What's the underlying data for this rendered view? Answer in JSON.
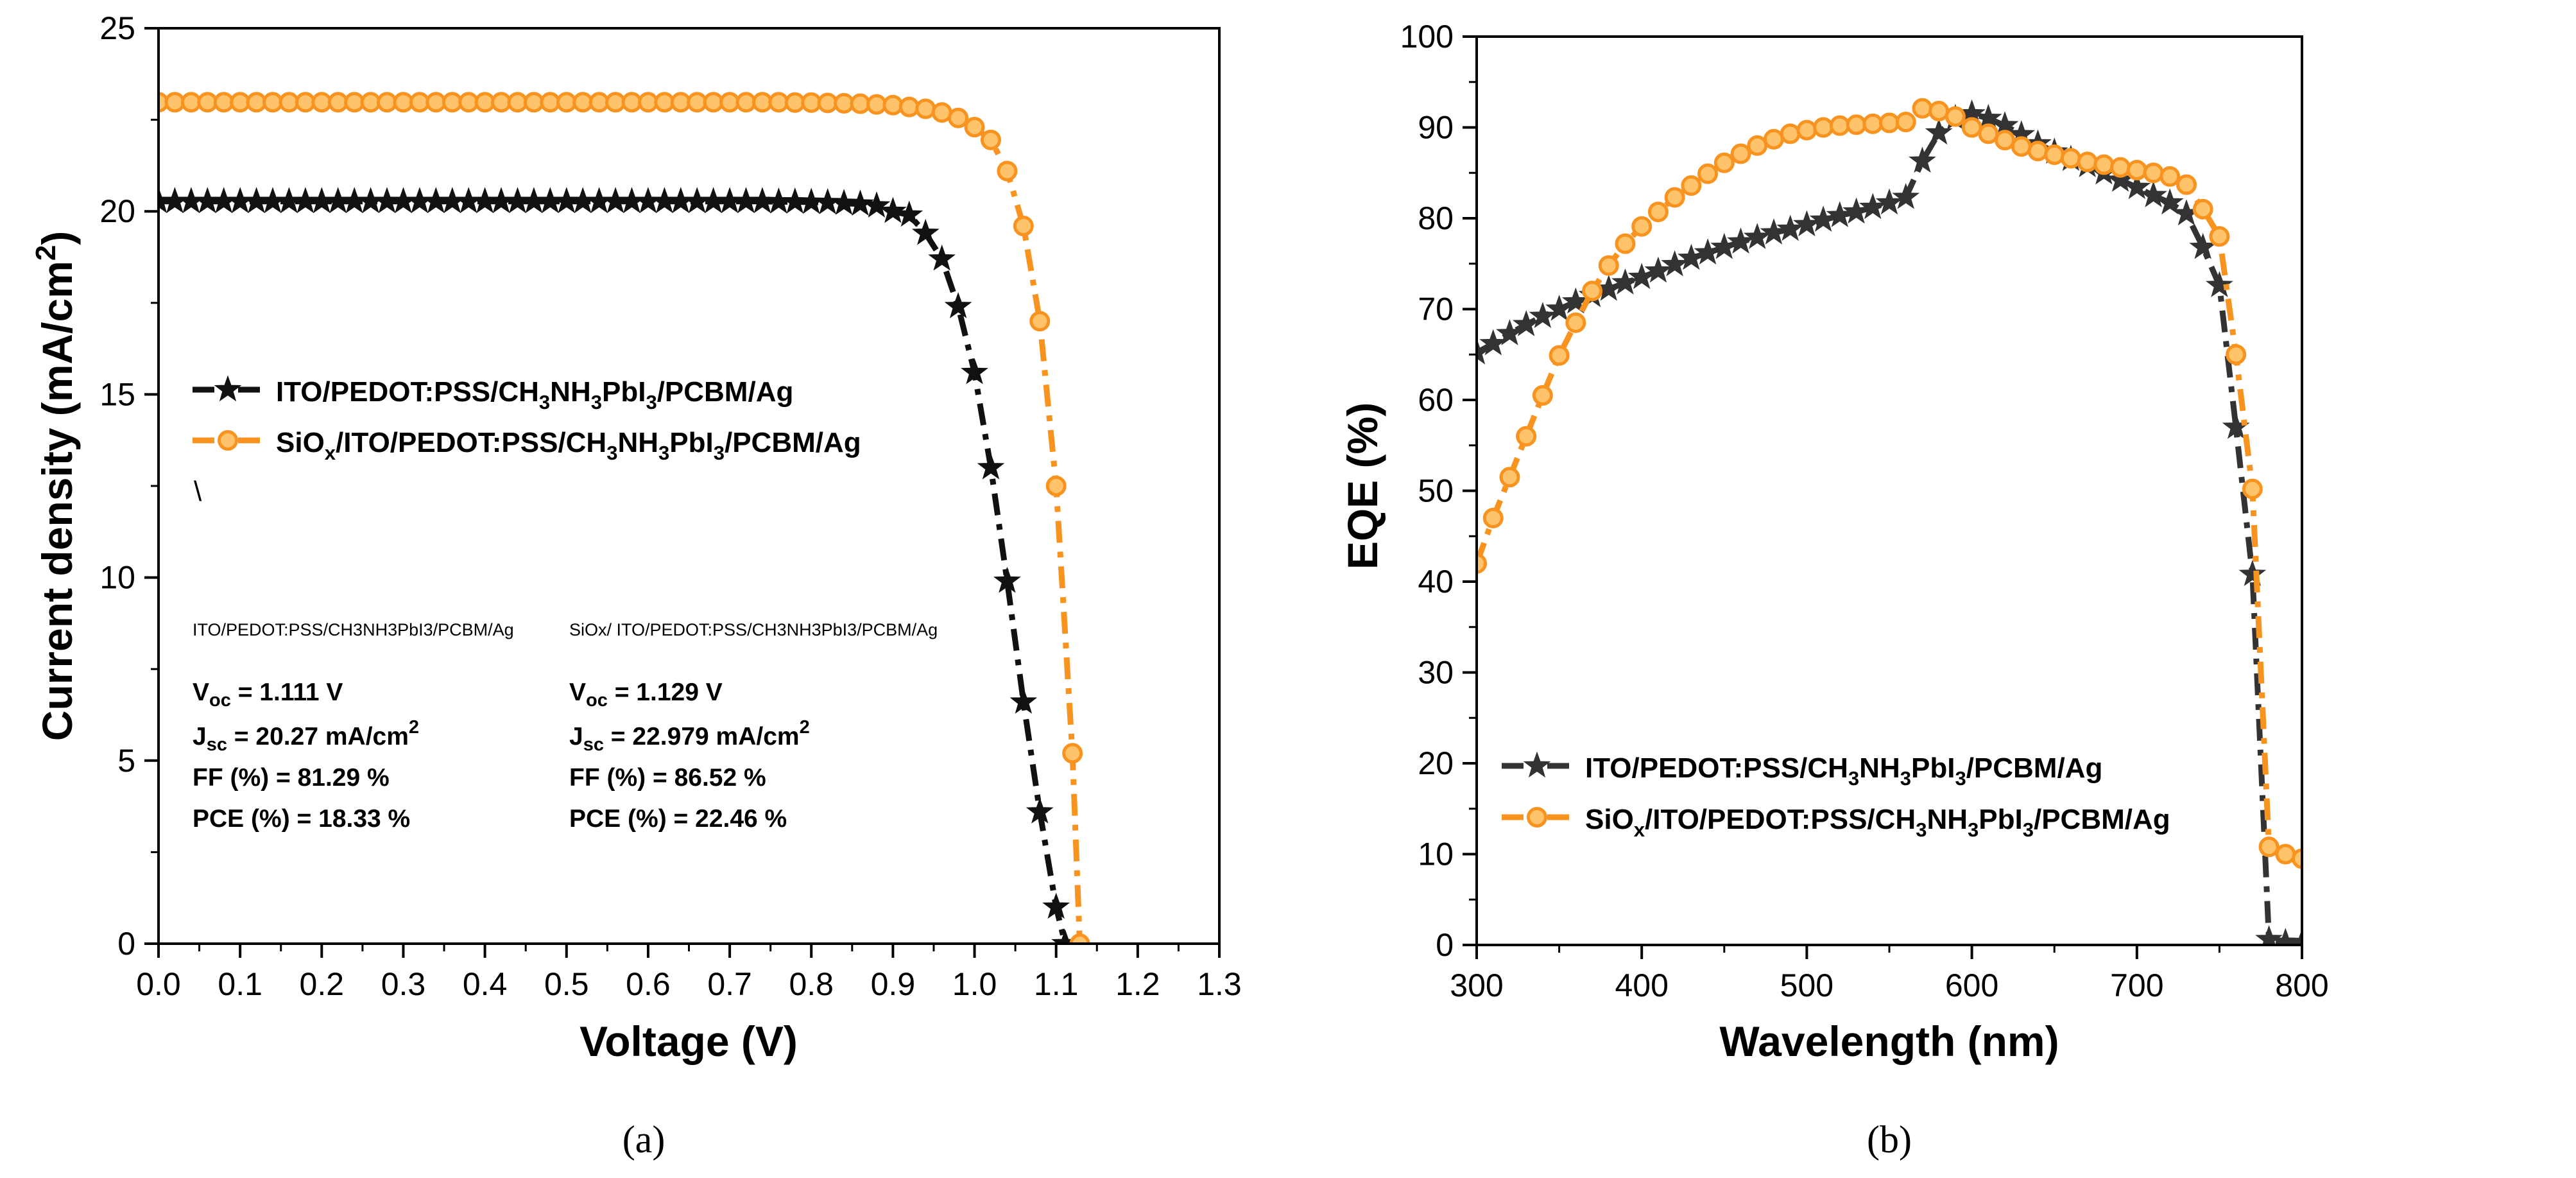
{
  "chart_data": [
    {
      "type": "line",
      "panel_label": "(a)",
      "title": "",
      "xlabel": "Voltage (V)",
      "ylabel": "Current density (mA/cm",
      "ylabel_sup": "2",
      "ylabel_tail": ")",
      "xlim": [
        0.0,
        1.3
      ],
      "ylim": [
        0,
        25
      ],
      "x_ticks": [
        0.0,
        0.1,
        0.2,
        0.3,
        0.4,
        0.5,
        0.6,
        0.7,
        0.8,
        0.9,
        1.0,
        1.1,
        1.2,
        1.3
      ],
      "y_ticks": [
        0,
        5,
        10,
        15,
        20,
        25
      ],
      "x_tick_labels": [
        "0.0",
        "0.1",
        "0.2",
        "0.3",
        "0.4",
        "0.5",
        "0.6",
        "0.7",
        "0.8",
        "0.9",
        "1.0",
        "1.1",
        "1.2",
        "1.3"
      ],
      "y_tick_labels": [
        "0",
        "5",
        "10",
        "15",
        "20",
        "25"
      ],
      "legend": {
        "placement": "middle-left",
        "entries": [
          {
            "pre": "ITO/PEDOT:PSS/CH",
            "sub1": "3",
            "mid": "NH",
            "sub2": "3",
            "post": "PbI",
            "sub3": "3",
            "tail": "/PCBM/Ag"
          },
          {
            "pre": "SiO",
            "sub0": "x",
            "pre2": "/ITO/PEDOT:PSS/CH",
            "sub1": "3",
            "mid": "NH",
            "sub2": "3",
            "post": "PbI",
            "sub3": "3",
            "tail": "/PCBM/Ag"
          }
        ],
        "stray_mark": "\\"
      },
      "annotation": {
        "col1_title": "ITO/PEDOT:PSS/CH3NH3PbI3/PCBM/Ag",
        "col2_title": "SiOx/ ITO/PEDOT:PSS/CH3NH3PbI3/PCBM/Ag",
        "voc_label": "V",
        "voc_sub": "oc",
        "jsc_label": "J",
        "jsc_sub": "sc",
        "col1_voc": " = 1.111 V",
        "col1_jsc": " =   20.27 mA/cm",
        "col1_ff": "FF (%) = 81.29 %",
        "col1_pce": "PCE (%) = 18.33 %",
        "col2_voc": " = 1.129 V",
        "col2_jsc": " =   22.979 mA/cm",
        "col2_ff": "FF (%) = 86.52 %",
        "col2_pce": "PCE (%) = 22.46 %",
        "sup2": "2"
      },
      "series": [
        {
          "name": "ITO/PEDOT:PSS/CH3NH3PbI3/PCBM/Ag",
          "color": "#111111",
          "marker": "star",
          "x": [
            0.0,
            0.02,
            0.04,
            0.06,
            0.08,
            0.1,
            0.12,
            0.14,
            0.16,
            0.18,
            0.2,
            0.22,
            0.24,
            0.26,
            0.28,
            0.3,
            0.32,
            0.34,
            0.36,
            0.38,
            0.4,
            0.42,
            0.44,
            0.46,
            0.48,
            0.5,
            0.52,
            0.54,
            0.56,
            0.58,
            0.6,
            0.62,
            0.64,
            0.66,
            0.68,
            0.7,
            0.72,
            0.74,
            0.76,
            0.78,
            0.8,
            0.82,
            0.84,
            0.86,
            0.88,
            0.9,
            0.92,
            0.94,
            0.96,
            0.98,
            1.0,
            1.02,
            1.04,
            1.06,
            1.08,
            1.1,
            1.111
          ],
          "y": [
            20.27,
            20.27,
            20.27,
            20.27,
            20.27,
            20.27,
            20.27,
            20.27,
            20.27,
            20.27,
            20.27,
            20.27,
            20.27,
            20.27,
            20.27,
            20.27,
            20.27,
            20.27,
            20.27,
            20.27,
            20.27,
            20.27,
            20.27,
            20.27,
            20.27,
            20.27,
            20.27,
            20.27,
            20.27,
            20.27,
            20.27,
            20.27,
            20.27,
            20.27,
            20.27,
            20.27,
            20.27,
            20.27,
            20.26,
            20.26,
            20.25,
            20.24,
            20.22,
            20.2,
            20.15,
            20.0,
            19.9,
            19.4,
            18.7,
            17.4,
            15.6,
            13.0,
            9.9,
            6.6,
            3.6,
            1.0,
            0.0
          ]
        },
        {
          "name": "SiOx/ITO/PEDOT:PSS/CH3NH3PbI3/PCBM/Ag",
          "color": "#F7931E",
          "marker": "circle",
          "x": [
            0.0,
            0.02,
            0.04,
            0.06,
            0.08,
            0.1,
            0.12,
            0.14,
            0.16,
            0.18,
            0.2,
            0.22,
            0.24,
            0.26,
            0.28,
            0.3,
            0.32,
            0.34,
            0.36,
            0.38,
            0.4,
            0.42,
            0.44,
            0.46,
            0.48,
            0.5,
            0.52,
            0.54,
            0.56,
            0.58,
            0.6,
            0.62,
            0.64,
            0.66,
            0.68,
            0.7,
            0.72,
            0.74,
            0.76,
            0.78,
            0.8,
            0.82,
            0.84,
            0.86,
            0.88,
            0.9,
            0.92,
            0.94,
            0.96,
            0.98,
            1.0,
            1.02,
            1.04,
            1.06,
            1.08,
            1.1,
            1.12,
            1.129
          ],
          "y": [
            22.979,
            22.979,
            22.979,
            22.979,
            22.979,
            22.979,
            22.979,
            22.979,
            22.979,
            22.979,
            22.979,
            22.979,
            22.979,
            22.979,
            22.979,
            22.979,
            22.979,
            22.979,
            22.979,
            22.979,
            22.979,
            22.979,
            22.979,
            22.979,
            22.979,
            22.979,
            22.979,
            22.979,
            22.979,
            22.979,
            22.979,
            22.979,
            22.979,
            22.979,
            22.979,
            22.979,
            22.979,
            22.979,
            22.979,
            22.97,
            22.97,
            22.96,
            22.95,
            22.94,
            22.92,
            22.9,
            22.85,
            22.8,
            22.7,
            22.55,
            22.3,
            21.95,
            21.1,
            19.6,
            17.0,
            12.5,
            5.2,
            0.0
          ]
        }
      ]
    },
    {
      "type": "line",
      "panel_label": "(b)",
      "title": "",
      "xlabel": "Wavelength (nm)",
      "ylabel": "EQE (%)",
      "xlim": [
        300,
        800
      ],
      "ylim": [
        0,
        100
      ],
      "x_ticks": [
        300,
        400,
        500,
        600,
        700,
        800
      ],
      "y_ticks": [
        0,
        10,
        20,
        30,
        40,
        50,
        60,
        70,
        80,
        90,
        100
      ],
      "x_tick_labels": [
        "300",
        "400",
        "500",
        "600",
        "700",
        "800"
      ],
      "y_tick_labels": [
        "0",
        "10",
        "20",
        "30",
        "40",
        "50",
        "60",
        "70",
        "80",
        "90",
        "100"
      ],
      "legend": {
        "placement": "lower-left",
        "entries": [
          {
            "pre": "ITO/PEDOT:PSS/CH",
            "sub1": "3",
            "mid": "NH",
            "sub2": "3",
            "post": "PbI",
            "sub3": "3",
            "tail": "/PCBM/Ag"
          },
          {
            "pre": "SiO",
            "sub0": "x",
            "pre2": "/ITO/PEDOT:PSS/CH",
            "sub1": "3",
            "mid": "NH",
            "sub2": "3",
            "post": "PbI",
            "sub3": "3",
            "tail": "/PCBM/Ag"
          }
        ]
      },
      "series": [
        {
          "name": "ITO/PEDOT:PSS/CH3NH3PbI3/PCBM/Ag",
          "color": "#333333",
          "marker": "star",
          "x": [
            300,
            310,
            320,
            330,
            340,
            350,
            360,
            370,
            380,
            390,
            400,
            410,
            420,
            430,
            440,
            450,
            460,
            470,
            480,
            490,
            500,
            510,
            520,
            530,
            540,
            550,
            560,
            570,
            580,
            590,
            600,
            610,
            620,
            630,
            640,
            650,
            660,
            670,
            680,
            690,
            700,
            710,
            720,
            730,
            740,
            750,
            760,
            770,
            780,
            790,
            800
          ],
          "y": [
            65.2,
            66.2,
            67.3,
            68.3,
            69.2,
            70.0,
            70.8,
            71.5,
            72.2,
            72.9,
            73.5,
            74.2,
            74.9,
            75.6,
            76.2,
            76.8,
            77.4,
            77.9,
            78.4,
            78.8,
            79.3,
            79.8,
            80.3,
            80.7,
            81.2,
            81.7,
            82.3,
            86.3,
            89.4,
            91.0,
            91.5,
            91.0,
            90.2,
            89.2,
            88.2,
            87.3,
            86.5,
            85.8,
            85.0,
            84.2,
            83.4,
            82.5,
            81.7,
            80.5,
            76.8,
            72.6,
            57.0,
            40.8,
            0.6,
            0.3,
            0.2
          ]
        },
        {
          "name": "SiOx/ITO/PEDOT:PSS/CH3NH3PbI3/PCBM/Ag",
          "color": "#F7931E",
          "marker": "circle",
          "x": [
            300,
            310,
            320,
            330,
            340,
            350,
            360,
            370,
            380,
            390,
            400,
            410,
            420,
            430,
            440,
            450,
            460,
            470,
            480,
            490,
            500,
            510,
            520,
            530,
            540,
            550,
            560,
            570,
            580,
            590,
            600,
            610,
            620,
            630,
            640,
            650,
            660,
            670,
            680,
            690,
            700,
            710,
            720,
            730,
            740,
            750,
            760,
            770,
            780,
            790,
            800
          ],
          "y": [
            42.0,
            47.0,
            51.5,
            56.0,
            60.5,
            64.9,
            68.5,
            72.0,
            74.8,
            77.2,
            79.1,
            80.7,
            82.3,
            83.6,
            84.9,
            86.1,
            87.1,
            88.0,
            88.7,
            89.3,
            89.7,
            90.0,
            90.2,
            90.3,
            90.4,
            90.5,
            90.6,
            92.1,
            91.8,
            91.2,
            90.0,
            89.3,
            88.6,
            87.9,
            87.4,
            87.0,
            86.6,
            86.2,
            85.9,
            85.6,
            85.3,
            85.0,
            84.6,
            83.7,
            81.0,
            78.0,
            65.0,
            50.2,
            10.8,
            10.0,
            9.5
          ]
        }
      ]
    }
  ]
}
